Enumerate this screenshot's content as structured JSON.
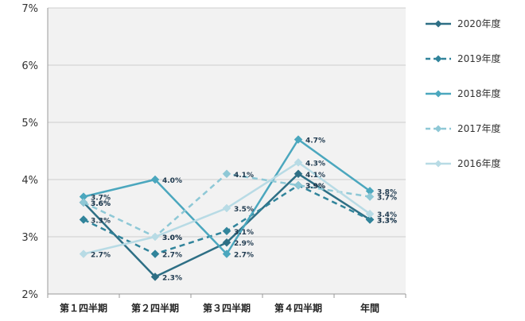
{
  "chart_data": {
    "type": "line",
    "title": "",
    "xlabel": "",
    "ylabel": "",
    "categories": [
      "第１四半期",
      "第２四半期",
      "第３四半期",
      "第４四半期",
      "年間"
    ],
    "ylim": [
      2,
      7
    ],
    "yticks": [
      "2%",
      "3%",
      "4%",
      "5%",
      "6%",
      "7%"
    ],
    "grid": true,
    "legend_position": "right",
    "series": [
      {
        "name": "2020年度",
        "values": [
          3.6,
          2.3,
          2.9,
          4.1,
          3.3
        ],
        "labels": [
          "3.6%",
          "2.3%",
          "2.9%",
          "4.1%",
          "3.3%"
        ],
        "color": "#2e6f85",
        "dashed": false
      },
      {
        "name": "2019年度",
        "values": [
          3.3,
          2.7,
          3.1,
          3.9,
          3.3
        ],
        "labels": [
          "3.3%",
          "2.7%",
          "3.1%",
          "3.9%",
          "3.3%"
        ],
        "color": "#31849b",
        "dashed": true
      },
      {
        "name": "2018年度",
        "values": [
          3.7,
          4.0,
          2.7,
          4.7,
          3.8
        ],
        "labels": [
          "3.7%",
          "4.0%",
          "2.7%",
          "4.7%",
          "3.8%"
        ],
        "color": "#4ba7be",
        "dashed": false
      },
      {
        "name": "2017年度",
        "values": [
          3.6,
          3.0,
          4.1,
          3.9,
          3.7
        ],
        "labels": [
          "3.6%",
          "3.0%",
          "4.1%",
          "3.9%",
          "3.7%"
        ],
        "color": "#8ec8d6",
        "dashed": true
      },
      {
        "name": "2016年度",
        "values": [
          2.7,
          3.0,
          3.5,
          4.3,
          3.4
        ],
        "labels": [
          "2.7%",
          "3.0%",
          "3.5%",
          "4.3%",
          "3.4%"
        ],
        "color": "#b8dbe5",
        "dashed": false
      }
    ]
  }
}
